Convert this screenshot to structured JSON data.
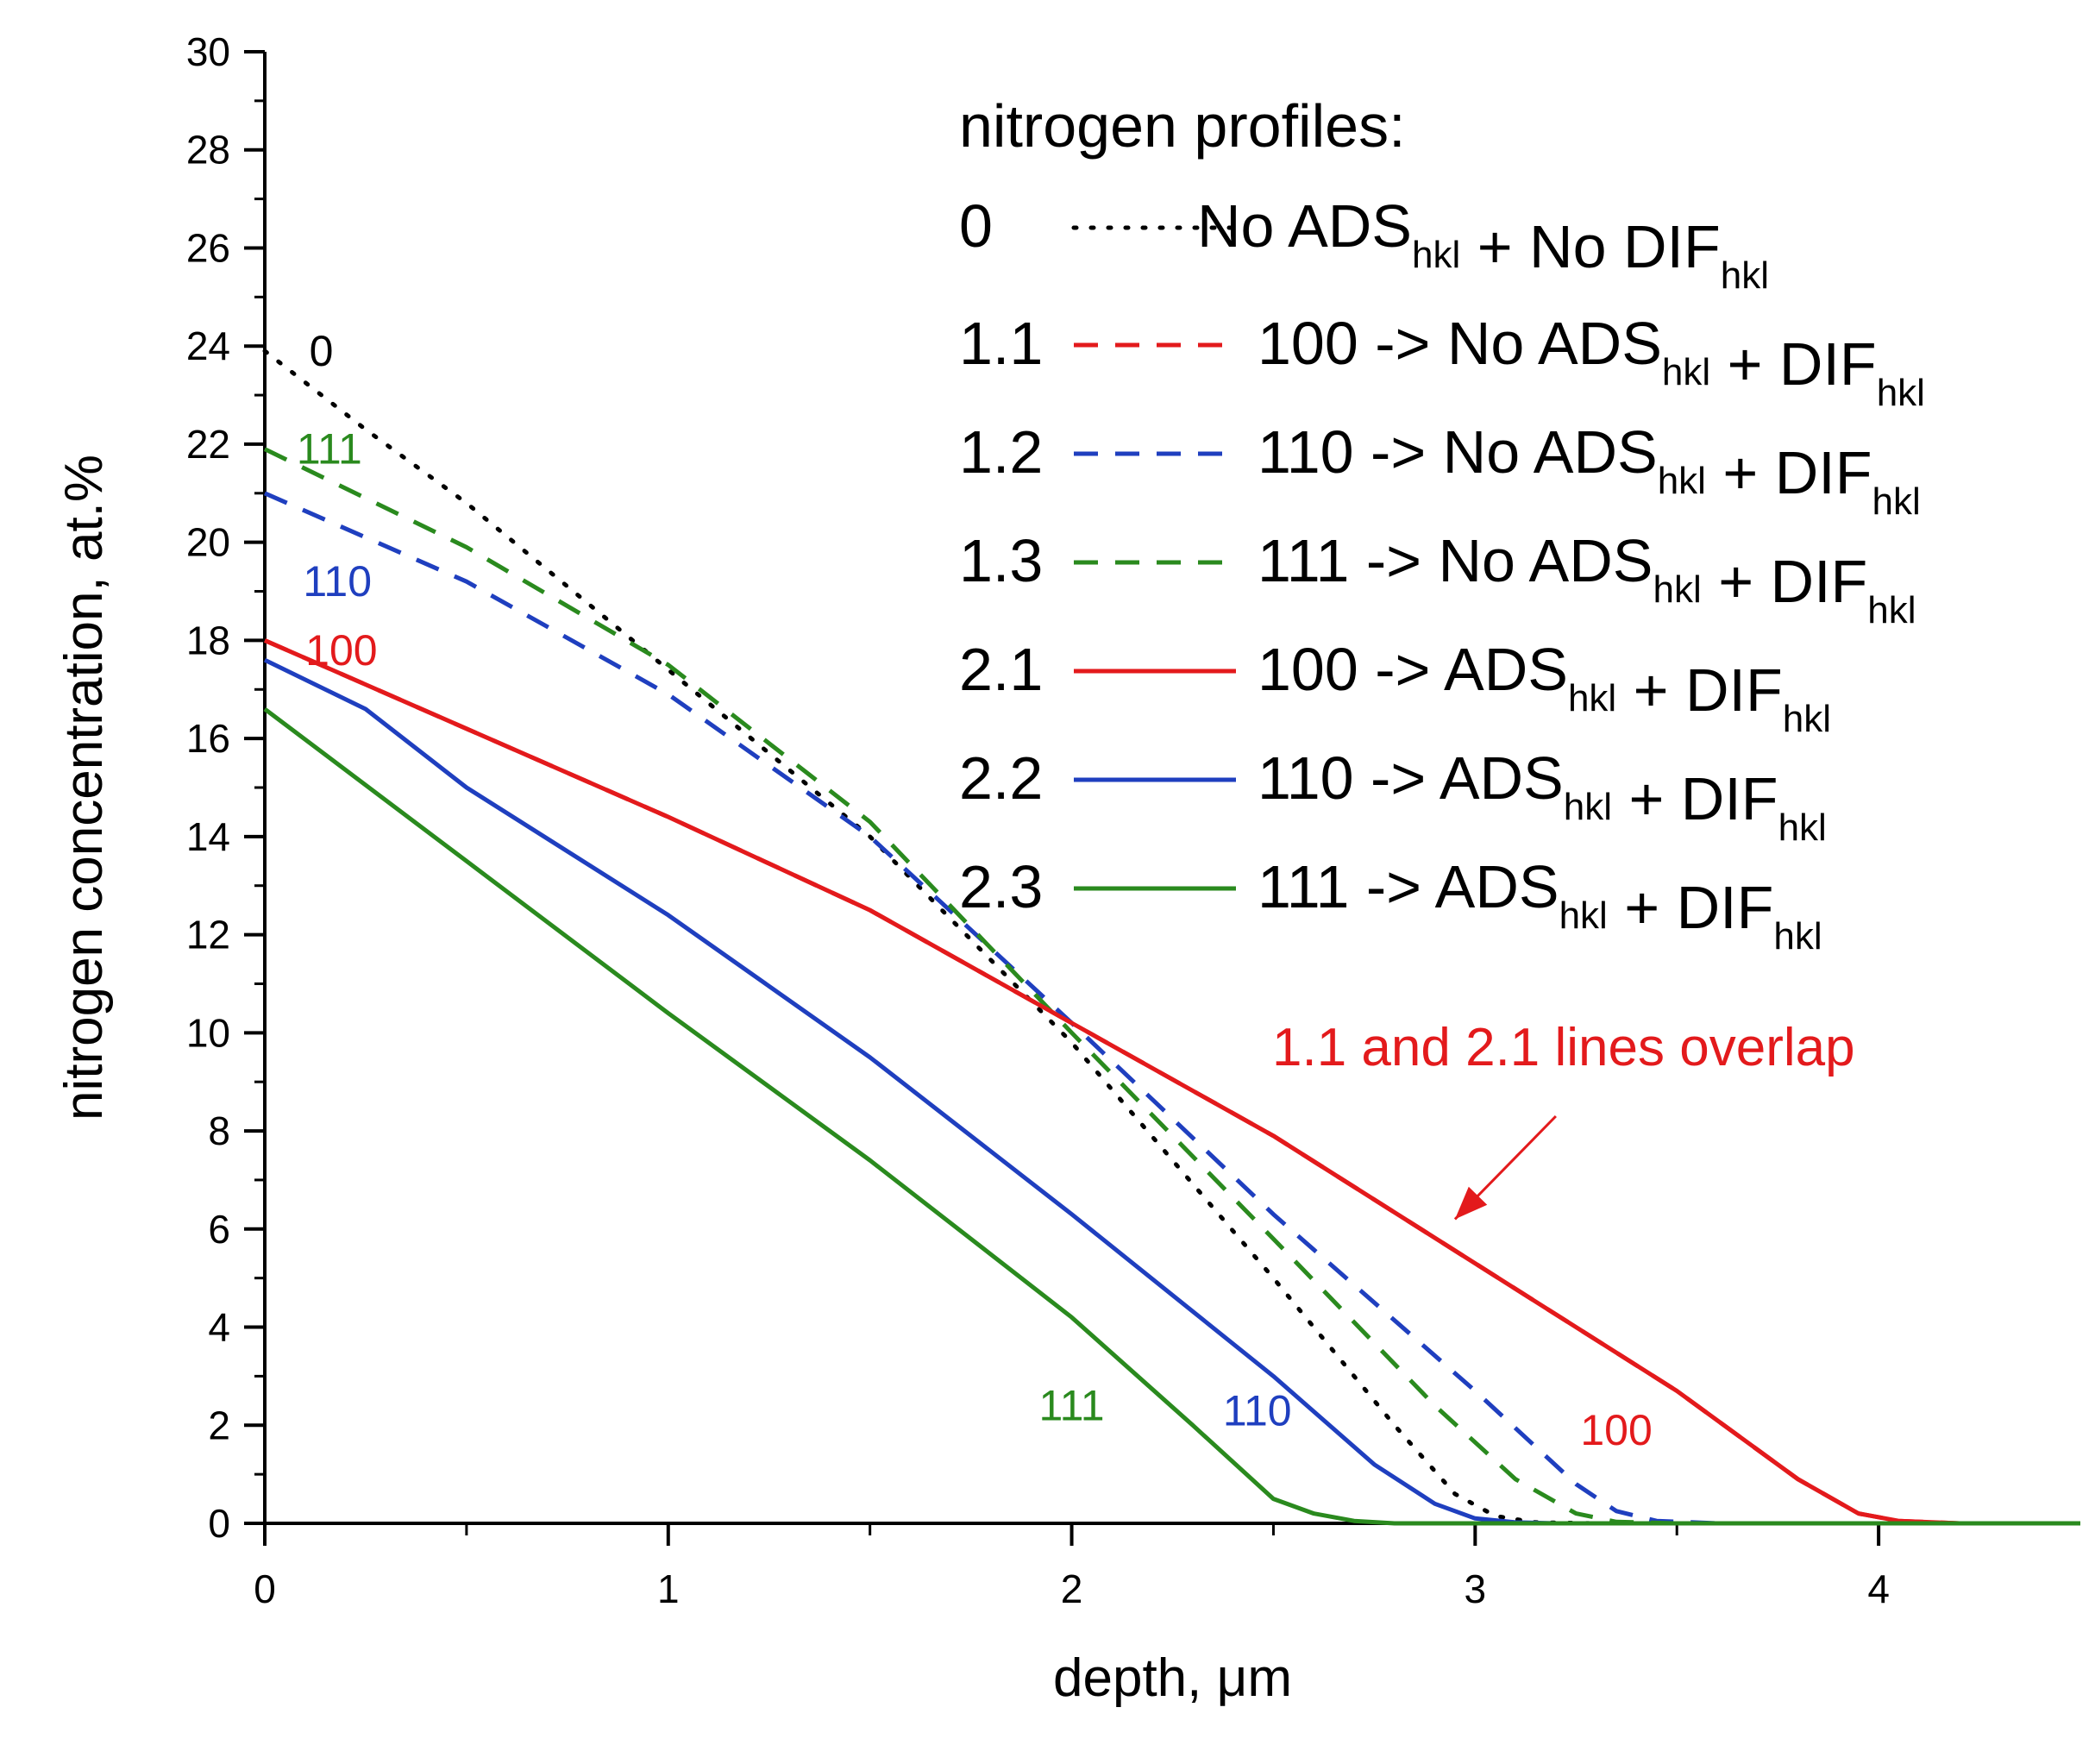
{
  "chart_data": {
    "type": "line",
    "xlabel": "depth, μm",
    "ylabel": "nitrogen concentration, at.%",
    "xlim": [
      0,
      4.5
    ],
    "ylim": [
      0,
      30
    ],
    "x_ticks": [
      0,
      1,
      2,
      3,
      4
    ],
    "y_ticks": [
      0,
      2,
      4,
      6,
      8,
      10,
      12,
      14,
      16,
      18,
      20,
      22,
      24,
      26,
      28,
      30
    ],
    "legend": {
      "title": "nitrogen profiles:",
      "placement": "top-right",
      "entries": [
        {
          "id": "0",
          "series": "0",
          "parts": [
            [
              "No ADS",
              "hkl"
            ],
            [
              " + No DIF",
              "hkl"
            ]
          ]
        },
        {
          "id": "1.1",
          "series": "1.1",
          "parts": [
            [
              "100 -> No ADS",
              "hkl"
            ],
            [
              " + DIF",
              "hkl"
            ]
          ]
        },
        {
          "id": "1.2",
          "series": "1.2",
          "parts": [
            [
              "110 -> No ADS",
              "hkl"
            ],
            [
              " + DIF",
              "hkl"
            ]
          ]
        },
        {
          "id": "1.3",
          "series": "1.3",
          "parts": [
            [
              "111 -> No ADS",
              "hkl"
            ],
            [
              " + DIF",
              "hkl"
            ]
          ]
        },
        {
          "id": "2.1",
          "series": "2.1",
          "parts": [
            [
              "100 -> ADS",
              "hkl"
            ],
            [
              " + DIF",
              "hkl"
            ]
          ]
        },
        {
          "id": "2.2",
          "series": "2.2",
          "parts": [
            [
              "110 -> ADS",
              "hkl"
            ],
            [
              " + DIF",
              "hkl"
            ]
          ]
        },
        {
          "id": "2.3",
          "series": "2.3",
          "parts": [
            [
              "111 -> ADS",
              "hkl"
            ],
            [
              " + DIF",
              "hkl"
            ]
          ]
        }
      ]
    },
    "series": [
      {
        "name": "0",
        "color": "#000000",
        "style": "dotted",
        "x": [
          0,
          0.25,
          0.5,
          1.0,
          1.5,
          2.0,
          2.5,
          2.8,
          2.95,
          3.05,
          3.15,
          3.3
        ],
        "y": [
          23.9,
          22.3,
          20.8,
          17.4,
          14.0,
          9.8,
          5.0,
          2.0,
          0.6,
          0.15,
          0.02,
          0
        ]
      },
      {
        "name": "1.1",
        "color": "#e31a1c",
        "style": "dashed",
        "x": [
          0,
          0.5,
          1.0,
          1.5,
          2.0,
          2.5,
          3.0,
          3.5,
          3.8,
          3.95,
          4.05,
          4.2,
          4.5
        ],
        "y": [
          18.0,
          16.2,
          14.4,
          12.5,
          10.2,
          7.9,
          5.3,
          2.7,
          0.9,
          0.2,
          0.05,
          0,
          0
        ]
      },
      {
        "name": "1.2",
        "color": "#1f3fbf",
        "style": "dashed",
        "x": [
          0,
          0.5,
          1.0,
          1.5,
          2.0,
          2.5,
          3.0,
          3.25,
          3.35,
          3.45,
          3.6
        ],
        "y": [
          21.0,
          19.2,
          16.9,
          14.0,
          10.2,
          6.3,
          2.7,
          0.8,
          0.25,
          0.05,
          0
        ]
      },
      {
        "name": "1.3",
        "color": "#2a8a1e",
        "style": "dashed",
        "x": [
          0,
          0.5,
          1.0,
          1.5,
          2.0,
          2.5,
          2.9,
          3.1,
          3.25,
          3.35,
          3.5
        ],
        "y": [
          21.9,
          19.9,
          17.5,
          14.3,
          10.0,
          5.8,
          2.4,
          0.9,
          0.2,
          0.03,
          0
        ]
      },
      {
        "name": "2.1",
        "color": "#e31a1c",
        "style": "solid",
        "x": [
          0,
          0.5,
          1.0,
          1.5,
          2.0,
          2.5,
          3.0,
          3.5,
          3.8,
          3.95,
          4.05,
          4.2,
          4.5
        ],
        "y": [
          18.0,
          16.2,
          14.4,
          12.5,
          10.2,
          7.9,
          5.3,
          2.7,
          0.9,
          0.2,
          0.05,
          0,
          0
        ]
      },
      {
        "name": "2.2",
        "color": "#1f3fbf",
        "style": "solid",
        "x": [
          0,
          0.25,
          0.5,
          1.0,
          1.5,
          2.0,
          2.5,
          2.75,
          2.9,
          3.0,
          3.1,
          3.2
        ],
        "y": [
          17.6,
          16.6,
          15.0,
          12.4,
          9.5,
          6.3,
          3.0,
          1.2,
          0.4,
          0.1,
          0.02,
          0
        ]
      },
      {
        "name": "2.3",
        "color": "#2a8a1e",
        "style": "solid",
        "x": [
          0,
          0.5,
          1.0,
          1.5,
          2.0,
          2.3,
          2.5,
          2.6,
          2.7,
          2.8,
          4.5
        ],
        "y": [
          16.6,
          13.5,
          10.4,
          7.4,
          4.2,
          2.0,
          0.5,
          0.2,
          0.05,
          0,
          0
        ]
      }
    ],
    "curve_labels": [
      {
        "text": "0",
        "color": "#000000",
        "x": 0.14,
        "y": 23.6
      },
      {
        "text": "111",
        "color": "#2a8a1e",
        "x": 0.16,
        "y": 21.6
      },
      {
        "text": "110",
        "color": "#1f3fbf",
        "x": 0.18,
        "y": 18.9
      },
      {
        "text": "100",
        "color": "#e31a1c",
        "x": 0.19,
        "y": 17.5
      },
      {
        "text": "111",
        "color": "#2a8a1e",
        "x": 2.0,
        "y": 2.1
      },
      {
        "text": "110",
        "color": "#1f3fbf",
        "x": 2.46,
        "y": 2.0
      },
      {
        "text": "100",
        "color": "#e31a1c",
        "x": 3.35,
        "y": 1.6
      }
    ],
    "annotation": {
      "text": "1.1 and 2.1 lines overlap",
      "color": "#e31a1c",
      "arrow_from": [
        3.2,
        8.3
      ],
      "arrow_to": [
        2.95,
        6.2
      ]
    }
  }
}
